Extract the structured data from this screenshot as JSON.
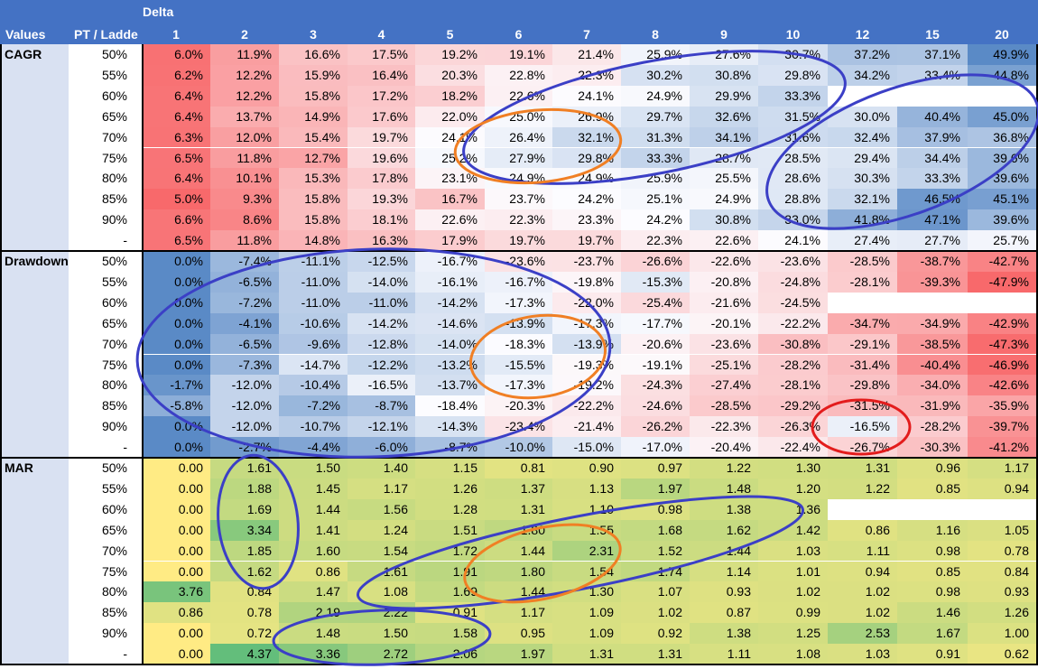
{
  "header": {
    "delta_label": "Delta",
    "values_label": "Values",
    "pt_label": "PT / Ladde",
    "columns": [
      "1",
      "2",
      "3",
      "4",
      "5",
      "6",
      "7",
      "8",
      "9",
      "10",
      "12",
      "15",
      "20"
    ]
  },
  "pt_labels": [
    "50%",
    "55%",
    "60%",
    "65%",
    "70%",
    "75%",
    "80%",
    "85%",
    "90%",
    "-"
  ],
  "sections": [
    {
      "name": "CAGR",
      "scale": "red-white-blue",
      "rows": [
        [
          "6.0%",
          "11.9%",
          "16.6%",
          "17.5%",
          "19.2%",
          "19.1%",
          "21.4%",
          "25.9%",
          "27.6%",
          "30.7%",
          "37.2%",
          "37.1%",
          "49.9%"
        ],
        [
          "6.2%",
          "12.2%",
          "15.9%",
          "16.4%",
          "20.3%",
          "22.8%",
          "22.3%",
          "30.2%",
          "30.8%",
          "29.8%",
          "34.2%",
          "33.4%",
          "44.8%"
        ],
        [
          "6.4%",
          "12.2%",
          "15.8%",
          "17.2%",
          "18.2%",
          "22.6%",
          "24.1%",
          "24.9%",
          "29.9%",
          "33.3%",
          "",
          "",
          ""
        ],
        [
          "6.4%",
          "13.7%",
          "14.9%",
          "17.6%",
          "22.0%",
          "25.0%",
          "26.9%",
          "29.7%",
          "32.6%",
          "31.5%",
          "30.0%",
          "40.4%",
          "45.0%"
        ],
        [
          "6.3%",
          "12.0%",
          "15.4%",
          "19.7%",
          "24.1%",
          "26.4%",
          "32.1%",
          "31.3%",
          "34.1%",
          "31.6%",
          "32.4%",
          "37.9%",
          "36.8%"
        ],
        [
          "6.5%",
          "11.8%",
          "12.7%",
          "19.6%",
          "25.2%",
          "27.9%",
          "29.8%",
          "33.3%",
          "28.7%",
          "28.5%",
          "29.4%",
          "34.4%",
          "39.6%"
        ],
        [
          "6.4%",
          "10.1%",
          "15.3%",
          "17.8%",
          "23.1%",
          "24.9%",
          "24.9%",
          "25.9%",
          "25.5%",
          "28.6%",
          "30.3%",
          "33.3%",
          "39.6%"
        ],
        [
          "5.0%",
          "9.3%",
          "15.8%",
          "19.3%",
          "16.7%",
          "23.7%",
          "24.2%",
          "25.1%",
          "24.9%",
          "28.8%",
          "32.1%",
          "46.5%",
          "45.1%"
        ],
        [
          "6.6%",
          "8.6%",
          "15.8%",
          "18.1%",
          "22.6%",
          "22.3%",
          "23.3%",
          "24.2%",
          "30.8%",
          "33.0%",
          "41.8%",
          "47.1%",
          "39.6%"
        ],
        [
          "6.5%",
          "11.8%",
          "14.8%",
          "16.3%",
          "17.9%",
          "19.7%",
          "19.7%",
          "22.3%",
          "22.6%",
          "24.1%",
          "27.4%",
          "27.7%",
          "25.7%"
        ]
      ]
    },
    {
      "name": "Drawdown",
      "scale": "blue-white-red",
      "rows": [
        [
          "0.0%",
          "-7.4%",
          "-11.1%",
          "-12.5%",
          "-16.7%",
          "-23.6%",
          "-23.7%",
          "-26.6%",
          "-22.6%",
          "-23.6%",
          "-28.5%",
          "-38.7%",
          "-42.7%"
        ],
        [
          "0.0%",
          "-6.5%",
          "-11.0%",
          "-14.0%",
          "-16.1%",
          "-16.7%",
          "-19.8%",
          "-15.3%",
          "-20.8%",
          "-24.8%",
          "-28.1%",
          "-39.3%",
          "-47.9%"
        ],
        [
          "0.0%",
          "-7.2%",
          "-11.0%",
          "-11.0%",
          "-14.2%",
          "-17.3%",
          "-22.0%",
          "-25.4%",
          "-21.6%",
          "-24.5%",
          "",
          "",
          ""
        ],
        [
          "0.0%",
          "-4.1%",
          "-10.6%",
          "-14.2%",
          "-14.6%",
          "-13.9%",
          "-17.3%",
          "-17.7%",
          "-20.1%",
          "-22.2%",
          "-34.7%",
          "-34.9%",
          "-42.9%"
        ],
        [
          "0.0%",
          "-6.5%",
          "-9.6%",
          "-12.8%",
          "-14.0%",
          "-18.3%",
          "-13.9%",
          "-20.6%",
          "-23.6%",
          "-30.8%",
          "-29.1%",
          "-38.5%",
          "-47.3%"
        ],
        [
          "0.0%",
          "-7.3%",
          "-14.7%",
          "-12.2%",
          "-13.2%",
          "-15.5%",
          "-19.3%",
          "-19.1%",
          "-25.1%",
          "-28.2%",
          "-31.4%",
          "-40.4%",
          "-46.9%"
        ],
        [
          "-1.7%",
          "-12.0%",
          "-10.4%",
          "-16.5%",
          "-13.7%",
          "-17.3%",
          "-19.2%",
          "-24.3%",
          "-27.4%",
          "-28.1%",
          "-29.8%",
          "-34.0%",
          "-42.6%"
        ],
        [
          "-5.8%",
          "-12.0%",
          "-7.2%",
          "-8.7%",
          "-18.4%",
          "-20.3%",
          "-22.2%",
          "-24.6%",
          "-28.5%",
          "-29.2%",
          "-31.5%",
          "-31.9%",
          "-35.9%"
        ],
        [
          "0.0%",
          "-12.0%",
          "-10.7%",
          "-12.1%",
          "-14.3%",
          "-23.4%",
          "-21.4%",
          "-26.2%",
          "-22.3%",
          "-26.3%",
          "-16.5%",
          "-28.2%",
          "-39.7%"
        ],
        [
          "0.0%",
          "-2.7%",
          "-4.4%",
          "-6.0%",
          "-8.7%",
          "-10.0%",
          "-15.0%",
          "-17.0%",
          "-20.4%",
          "-22.4%",
          "-26.7%",
          "-30.3%",
          "-41.2%"
        ]
      ]
    },
    {
      "name": "MAR",
      "scale": "yellow-green",
      "rows": [
        [
          "0.00",
          "1.61",
          "1.50",
          "1.40",
          "1.15",
          "0.81",
          "0.90",
          "0.97",
          "1.22",
          "1.30",
          "1.31",
          "0.96",
          "1.17"
        ],
        [
          "0.00",
          "1.88",
          "1.45",
          "1.17",
          "1.26",
          "1.37",
          "1.13",
          "1.97",
          "1.48",
          "1.20",
          "1.22",
          "0.85",
          "0.94"
        ],
        [
          "0.00",
          "1.69",
          "1.44",
          "1.56",
          "1.28",
          "1.31",
          "1.10",
          "0.98",
          "1.38",
          "1.36",
          "",
          "",
          ""
        ],
        [
          "0.00",
          "3.34",
          "1.41",
          "1.24",
          "1.51",
          "1.80",
          "1.55",
          "1.68",
          "1.62",
          "1.42",
          "0.86",
          "1.16",
          "1.05"
        ],
        [
          "0.00",
          "1.85",
          "1.60",
          "1.54",
          "1.72",
          "1.44",
          "2.31",
          "1.52",
          "1.44",
          "1.03",
          "1.11",
          "0.98",
          "0.78"
        ],
        [
          "0.00",
          "1.62",
          "0.86",
          "1.61",
          "1.91",
          "1.80",
          "1.54",
          "1.74",
          "1.14",
          "1.01",
          "0.94",
          "0.85",
          "0.84"
        ],
        [
          "3.76",
          "0.84",
          "1.47",
          "1.08",
          "1.69",
          "1.44",
          "1.30",
          "1.07",
          "0.93",
          "1.02",
          "1.02",
          "0.98",
          "0.93"
        ],
        [
          "0.86",
          "0.78",
          "2.19",
          "2.22",
          "0.91",
          "1.17",
          "1.09",
          "1.02",
          "0.87",
          "0.99",
          "1.02",
          "1.46",
          "1.26"
        ],
        [
          "0.00",
          "0.72",
          "1.48",
          "1.50",
          "1.58",
          "0.95",
          "1.09",
          "0.92",
          "1.38",
          "1.25",
          "2.53",
          "1.67",
          "1.00"
        ],
        [
          "0.00",
          "4.37",
          "3.36",
          "2.72",
          "2.06",
          "1.97",
          "1.31",
          "1.31",
          "1.11",
          "1.08",
          "1.03",
          "0.91",
          "0.62"
        ]
      ]
    }
  ],
  "colors": {
    "header_bg": "#4472c4",
    "section_bg": "#d9e1f2",
    "annotation_blue": "#3b3fc6",
    "annotation_orange": "#f07f24",
    "annotation_red": "#e31c1c",
    "scale_red": "#f8696b",
    "scale_blue": "#5a8ac6",
    "scale_green": "#63be7b",
    "scale_yellow": "#ffeb84"
  }
}
